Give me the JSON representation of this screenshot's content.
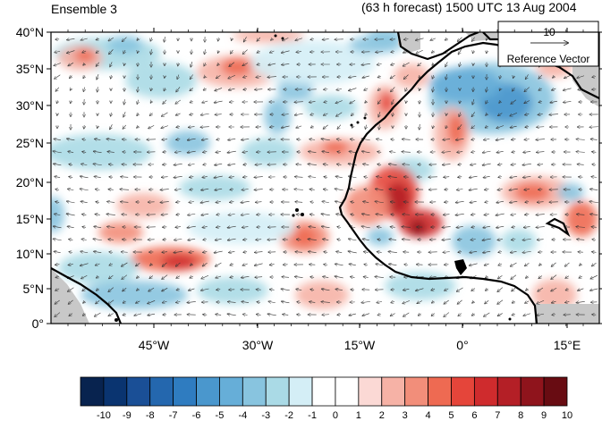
{
  "header": {
    "left_title": "Ensemble 3",
    "right_title": "(63 h forecast) 1500 UTC 13 Aug 2004"
  },
  "map": {
    "lat_labels": [
      "40°N",
      "35°N",
      "30°N",
      "25°N",
      "20°N",
      "15°N",
      "10°N",
      "5°N",
      "0°"
    ],
    "lon_labels": [
      "45°W",
      "30°W",
      "15°W",
      "0°",
      "15°E"
    ],
    "reference_vector": {
      "value": "10",
      "label": "Reference Vector"
    }
  },
  "colorbar": {
    "labels": [
      "-10",
      "-9",
      "-8",
      "-7",
      "-6",
      "-5",
      "-4",
      "-3",
      "-2",
      "-1",
      "0",
      "1",
      "2",
      "3",
      "4",
      "5",
      "6",
      "7",
      "8",
      "9",
      "10"
    ],
    "colors": [
      "#08234f",
      "#0a3470",
      "#1a4f96",
      "#2467ae",
      "#2f7cc0",
      "#4a97cd",
      "#66aed8",
      "#88c4df",
      "#aadae6",
      "#d4eef6",
      "#ffffff",
      "#ffffff",
      "#fbd9d5",
      "#f6b2a6",
      "#f28e7a",
      "#ee6a52",
      "#e5453a",
      "#cf2b2d",
      "#b41f26",
      "#8f141c",
      "#680c12"
    ]
  },
  "colors": {
    "land_border": "#000000",
    "missing_data": "#c8c8c8"
  }
}
